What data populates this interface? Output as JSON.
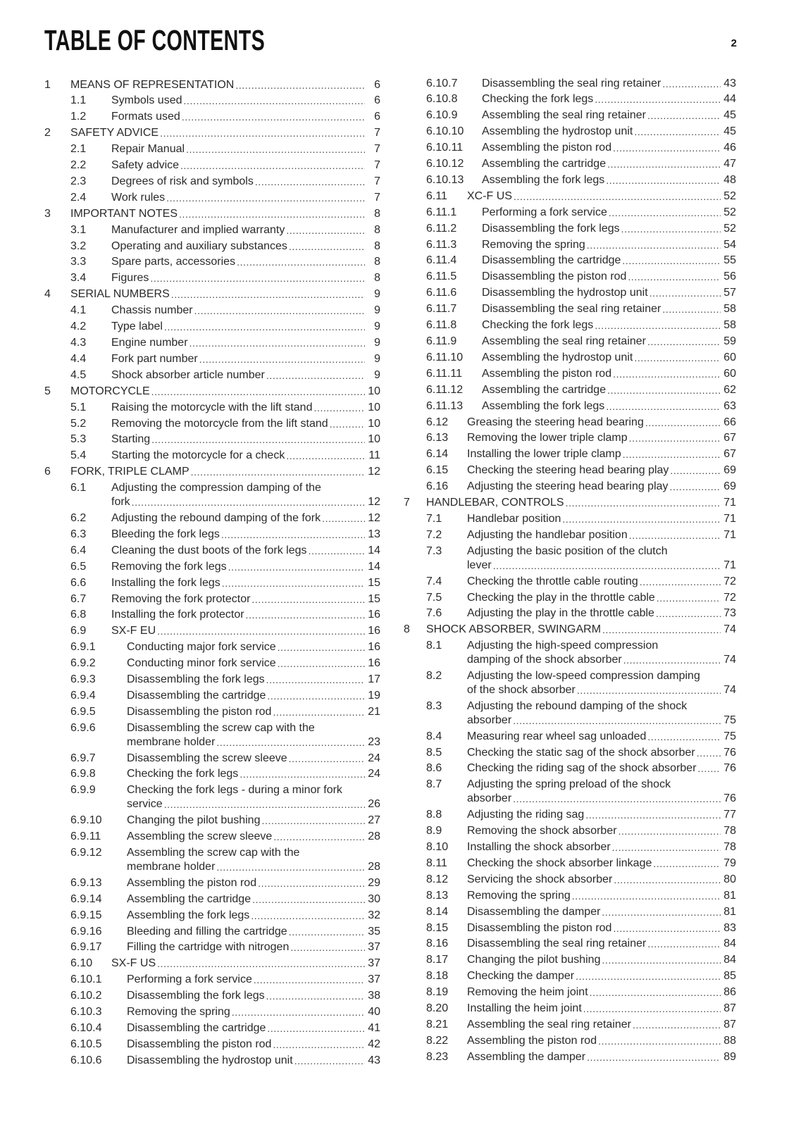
{
  "header": {
    "title": "TABLE OF CONTENTS",
    "page_number": "2"
  },
  "columns": {
    "left": [
      {
        "n": "1",
        "t": "MEANS OF REPRESENTATION",
        "p": "6",
        "l": 0
      },
      {
        "n": "1.1",
        "t": "Symbols used",
        "p": "6",
        "l": 1
      },
      {
        "n": "1.2",
        "t": "Formats used",
        "p": "6",
        "l": 1
      },
      {
        "n": "2",
        "t": "SAFETY ADVICE",
        "p": "7",
        "l": 0
      },
      {
        "n": "2.1",
        "t": "Repair Manual",
        "p": "7",
        "l": 1
      },
      {
        "n": "2.2",
        "t": "Safety advice",
        "p": "7",
        "l": 1
      },
      {
        "n": "2.3",
        "t": "Degrees of risk and symbols",
        "p": "7",
        "l": 1
      },
      {
        "n": "2.4",
        "t": "Work rules",
        "p": "7",
        "l": 1
      },
      {
        "n": "3",
        "t": "IMPORTANT NOTES",
        "p": "8",
        "l": 0
      },
      {
        "n": "3.1",
        "t": "Manufacturer and implied warranty",
        "p": "8",
        "l": 1
      },
      {
        "n": "3.2",
        "t": "Operating and auxiliary substances",
        "p": "8",
        "l": 1
      },
      {
        "n": "3.3",
        "t": "Spare parts, accessories",
        "p": "8",
        "l": 1
      },
      {
        "n": "3.4",
        "t": "Figures",
        "p": "8",
        "l": 1
      },
      {
        "n": "4",
        "t": "SERIAL NUMBERS",
        "p": "9",
        "l": 0
      },
      {
        "n": "4.1",
        "t": "Chassis number",
        "p": "9",
        "l": 1
      },
      {
        "n": "4.2",
        "t": "Type label",
        "p": "9",
        "l": 1
      },
      {
        "n": "4.3",
        "t": "Engine number",
        "p": "9",
        "l": 1
      },
      {
        "n": "4.4",
        "t": "Fork part number",
        "p": "9",
        "l": 1
      },
      {
        "n": "4.5",
        "t": "Shock absorber article number",
        "p": "9",
        "l": 1
      },
      {
        "n": "5",
        "t": "MOTORCYCLE",
        "p": "10",
        "l": 0
      },
      {
        "n": "5.1",
        "t": "Raising the motorcycle with the lift stand",
        "p": "10",
        "l": 1
      },
      {
        "n": "5.2",
        "t": "Removing the motorcycle from the lift stand",
        "p": "10",
        "l": 1
      },
      {
        "n": "5.3",
        "t": "Starting",
        "p": "10",
        "l": 1
      },
      {
        "n": "5.4",
        "t": "Starting the motorcycle for a check",
        "p": "11",
        "l": 1
      },
      {
        "n": "6",
        "t": "FORK, TRIPLE CLAMP",
        "p": "12",
        "l": 0
      },
      {
        "n": "6.1",
        "t": "Adjusting the compression damping of the",
        "t2": "fork",
        "p": "12",
        "l": 1
      },
      {
        "n": "6.2",
        "t": "Adjusting the rebound damping of the fork",
        "p": "12",
        "l": 1
      },
      {
        "n": "6.3",
        "t": "Bleeding the fork legs",
        "p": "13",
        "l": 1
      },
      {
        "n": "6.4",
        "t": "Cleaning the dust boots of the fork legs",
        "p": "14",
        "l": 1
      },
      {
        "n": "6.5",
        "t": "Removing the fork legs",
        "p": "14",
        "l": 1
      },
      {
        "n": "6.6",
        "t": "Installing the fork legs",
        "p": "15",
        "l": 1
      },
      {
        "n": "6.7",
        "t": "Removing the fork protector",
        "p": "15",
        "l": 1
      },
      {
        "n": "6.8",
        "t": "Installing the fork protector",
        "p": "16",
        "l": 1
      },
      {
        "n": "6.9",
        "t": "SX-F EU",
        "p": "16",
        "l": 1
      },
      {
        "n": "6.9.1",
        "t": "Conducting major fork service",
        "p": "16",
        "l": 2
      },
      {
        "n": "6.9.2",
        "t": "Conducting minor fork service",
        "p": "16",
        "l": 2
      },
      {
        "n": "6.9.3",
        "t": "Disassembling the fork legs",
        "p": "17",
        "l": 2
      },
      {
        "n": "6.9.4",
        "t": "Disassembling the cartridge",
        "p": "19",
        "l": 2
      },
      {
        "n": "6.9.5",
        "t": "Disassembling the piston rod",
        "p": "21",
        "l": 2
      },
      {
        "n": "6.9.6",
        "t": "Disassembling the screw cap with the",
        "t2": "membrane holder",
        "p": "23",
        "l": 2
      },
      {
        "n": "6.9.7",
        "t": "Disassembling the screw sleeve",
        "p": "24",
        "l": 2
      },
      {
        "n": "6.9.8",
        "t": "Checking the fork legs",
        "p": "24",
        "l": 2
      },
      {
        "n": "6.9.9",
        "t": "Checking the fork legs - during a minor fork",
        "t2": "service",
        "p": "26",
        "l": 2
      },
      {
        "n": "6.9.10",
        "t": "Changing the pilot bushing",
        "p": "27",
        "l": 2
      },
      {
        "n": "6.9.11",
        "t": "Assembling the screw sleeve",
        "p": "28",
        "l": 2
      },
      {
        "n": "6.9.12",
        "t": "Assembling the screw cap with the",
        "t2": "membrane holder",
        "p": "28",
        "l": 2
      },
      {
        "n": "6.9.13",
        "t": "Assembling the piston rod",
        "p": "29",
        "l": 2
      },
      {
        "n": "6.9.14",
        "t": "Assembling the cartridge",
        "p": "30",
        "l": 2
      },
      {
        "n": "6.9.15",
        "t": "Assembling the fork legs",
        "p": "32",
        "l": 2
      },
      {
        "n": "6.9.16",
        "t": "Bleeding and filling the cartridge",
        "p": "35",
        "l": 2
      },
      {
        "n": "6.9.17",
        "t": "Filling the cartridge with nitrogen",
        "p": "37",
        "l": 2
      },
      {
        "n": "6.10",
        "t": "SX-F US",
        "p": "37",
        "l": 1
      },
      {
        "n": "6.10.1",
        "t": "Performing a fork service",
        "p": "37",
        "l": 2
      },
      {
        "n": "6.10.2",
        "t": "Disassembling the fork legs",
        "p": "38",
        "l": 2
      },
      {
        "n": "6.10.3",
        "t": "Removing the spring",
        "p": "40",
        "l": 2
      },
      {
        "n": "6.10.4",
        "t": "Disassembling the cartridge",
        "p": "41",
        "l": 2
      },
      {
        "n": "6.10.5",
        "t": "Disassembling the piston rod",
        "p": "42",
        "l": 2
      },
      {
        "n": "6.10.6",
        "t": "Disassembling the hydrostop unit",
        "p": "43",
        "l": 2
      }
    ],
    "right": [
      {
        "n": "6.10.7",
        "t": "Disassembling the seal ring retainer",
        "p": "43",
        "l": 2
      },
      {
        "n": "6.10.8",
        "t": "Checking the fork legs",
        "p": "44",
        "l": 2
      },
      {
        "n": "6.10.9",
        "t": "Assembling the seal ring retainer",
        "p": "45",
        "l": 2
      },
      {
        "n": "6.10.10",
        "t": "Assembling the hydrostop unit",
        "p": "45",
        "l": 2
      },
      {
        "n": "6.10.11",
        "t": "Assembling the piston rod",
        "p": "46",
        "l": 2
      },
      {
        "n": "6.10.12",
        "t": "Assembling the cartridge",
        "p": "47",
        "l": 2
      },
      {
        "n": "6.10.13",
        "t": "Assembling the fork legs",
        "p": "48",
        "l": 2
      },
      {
        "n": "6.11",
        "t": "XC-F US",
        "p": "52",
        "l": 1
      },
      {
        "n": "6.11.1",
        "t": "Performing a fork service",
        "p": "52",
        "l": 2
      },
      {
        "n": "6.11.2",
        "t": "Disassembling the fork legs",
        "p": "52",
        "l": 2
      },
      {
        "n": "6.11.3",
        "t": "Removing the spring",
        "p": "54",
        "l": 2
      },
      {
        "n": "6.11.4",
        "t": "Disassembling the cartridge",
        "p": "55",
        "l": 2
      },
      {
        "n": "6.11.5",
        "t": "Disassembling the piston rod",
        "p": "56",
        "l": 2
      },
      {
        "n": "6.11.6",
        "t": "Disassembling the hydrostop unit",
        "p": "57",
        "l": 2
      },
      {
        "n": "6.11.7",
        "t": "Disassembling the seal ring retainer",
        "p": "58",
        "l": 2
      },
      {
        "n": "6.11.8",
        "t": "Checking the fork legs",
        "p": "58",
        "l": 2
      },
      {
        "n": "6.11.9",
        "t": "Assembling the seal ring retainer",
        "p": "59",
        "l": 2
      },
      {
        "n": "6.11.10",
        "t": "Assembling the hydrostop unit",
        "p": "60",
        "l": 2
      },
      {
        "n": "6.11.11",
        "t": "Assembling the piston rod",
        "p": "60",
        "l": 2
      },
      {
        "n": "6.11.12",
        "t": "Assembling the cartridge",
        "p": "62",
        "l": 2
      },
      {
        "n": "6.11.13",
        "t": "Assembling the fork legs",
        "p": "63",
        "l": 2
      },
      {
        "n": "6.12",
        "t": "Greasing the steering head bearing",
        "p": "66",
        "l": 1
      },
      {
        "n": "6.13",
        "t": "Removing the lower triple clamp",
        "p": "67",
        "l": 1
      },
      {
        "n": "6.14",
        "t": "Installing the lower triple clamp",
        "p": "67",
        "l": 1
      },
      {
        "n": "6.15",
        "t": "Checking the steering head bearing play",
        "p": "69",
        "l": 1
      },
      {
        "n": "6.16",
        "t": "Adjusting the steering head bearing play",
        "p": "69",
        "l": 1
      },
      {
        "n": "7",
        "t": "HANDLEBAR, CONTROLS",
        "p": "71",
        "l": 0
      },
      {
        "n": "7.1",
        "t": "Handlebar position",
        "p": "71",
        "l": 1
      },
      {
        "n": "7.2",
        "t": "Adjusting the handlebar position",
        "p": "71",
        "l": 1
      },
      {
        "n": "7.3",
        "t": "Adjusting the basic position of the clutch",
        "t2": "lever",
        "p": "71",
        "l": 1
      },
      {
        "n": "7.4",
        "t": "Checking the throttle cable routing",
        "p": "72",
        "l": 1
      },
      {
        "n": "7.5",
        "t": "Checking the play in the throttle cable",
        "p": "72",
        "l": 1
      },
      {
        "n": "7.6",
        "t": "Adjusting the play in the throttle cable",
        "p": "73",
        "l": 1
      },
      {
        "n": "8",
        "t": "SHOCK ABSORBER, SWINGARM",
        "p": "74",
        "l": 0
      },
      {
        "n": "8.1",
        "t": "Adjusting the high-speed compression",
        "t2": "damping of the shock absorber",
        "p": "74",
        "l": 1
      },
      {
        "n": "8.2",
        "t": "Adjusting the low-speed compression damping",
        "t2": "of the shock absorber",
        "p": "74",
        "l": 1
      },
      {
        "n": "8.3",
        "t": "Adjusting the rebound damping of the shock",
        "t2": "absorber",
        "p": "75",
        "l": 1
      },
      {
        "n": "8.4",
        "t": "Measuring rear wheel sag unloaded",
        "p": "75",
        "l": 1
      },
      {
        "n": "8.5",
        "t": "Checking the static sag of the shock absorber",
        "p": "76",
        "l": 1
      },
      {
        "n": "8.6",
        "t": "Checking the riding sag of the shock absorber",
        "p": "76",
        "l": 1
      },
      {
        "n": "8.7",
        "t": "Adjusting the spring preload of the shock",
        "t2": "absorber",
        "p": "76",
        "l": 1
      },
      {
        "n": "8.8",
        "t": "Adjusting the riding sag",
        "p": "77",
        "l": 1
      },
      {
        "n": "8.9",
        "t": "Removing the shock absorber",
        "p": "78",
        "l": 1
      },
      {
        "n": "8.10",
        "t": "Installing the shock absorber",
        "p": "78",
        "l": 1
      },
      {
        "n": "8.11",
        "t": "Checking the shock absorber linkage",
        "p": "79",
        "l": 1
      },
      {
        "n": "8.12",
        "t": "Servicing the shock absorber",
        "p": "80",
        "l": 1
      },
      {
        "n": "8.13",
        "t": "Removing the spring",
        "p": "81",
        "l": 1
      },
      {
        "n": "8.14",
        "t": "Disassembling the damper",
        "p": "81",
        "l": 1
      },
      {
        "n": "8.15",
        "t": "Disassembling the piston rod",
        "p": "83",
        "l": 1
      },
      {
        "n": "8.16",
        "t": "Disassembling the seal ring retainer",
        "p": "84",
        "l": 1
      },
      {
        "n": "8.17",
        "t": "Changing the pilot bushing",
        "p": "84",
        "l": 1
      },
      {
        "n": "8.18",
        "t": "Checking the damper",
        "p": "85",
        "l": 1
      },
      {
        "n": "8.19",
        "t": "Removing the heim joint",
        "p": "86",
        "l": 1
      },
      {
        "n": "8.20",
        "t": "Installing the heim joint",
        "p": "87",
        "l": 1
      },
      {
        "n": "8.21",
        "t": "Assembling the seal ring retainer",
        "p": "87",
        "l": 1
      },
      {
        "n": "8.22",
        "t": "Assembling the piston rod",
        "p": "88",
        "l": 1
      },
      {
        "n": "8.23",
        "t": "Assembling the damper",
        "p": "89",
        "l": 1
      }
    ]
  }
}
